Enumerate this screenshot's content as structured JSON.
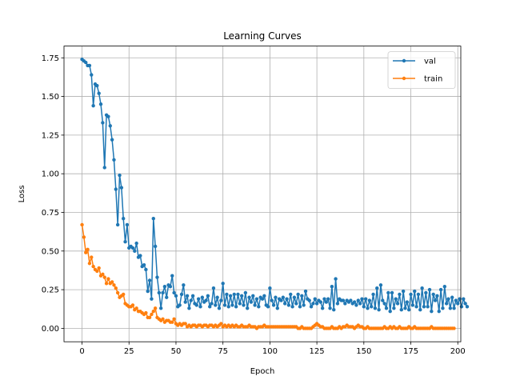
{
  "chart_data": {
    "type": "line",
    "title": "Learning Curves",
    "xlabel": "Epoch",
    "ylabel": "Loss",
    "xlim": [
      -9.6,
      201.6
    ],
    "ylim": [
      -0.087,
      1.826
    ],
    "xticks": [
      0,
      25,
      50,
      75,
      100,
      125,
      150,
      175,
      200
    ],
    "xtick_labels": [
      "0",
      "25",
      "50",
      "75",
      "100",
      "125",
      "150",
      "175",
      "200"
    ],
    "yticks": [
      0.0,
      0.25,
      0.5,
      0.75,
      1.0,
      1.25,
      1.5,
      1.75
    ],
    "ytick_labels": [
      "0.00",
      "0.25",
      "0.50",
      "0.75",
      "1.00",
      "1.25",
      "1.50",
      "1.75"
    ],
    "grid": true,
    "legend": "top-right",
    "series": [
      {
        "name": "val",
        "color": "#1f77b4",
        "values": [
          1.74,
          1.73,
          1.72,
          1.7,
          1.7,
          1.64,
          1.44,
          1.58,
          1.57,
          1.52,
          1.45,
          1.33,
          1.04,
          1.38,
          1.37,
          1.31,
          1.22,
          1.09,
          0.9,
          0.67,
          0.99,
          0.91,
          0.71,
          0.56,
          0.67,
          0.52,
          0.53,
          0.52,
          0.5,
          0.55,
          0.46,
          0.47,
          0.4,
          0.41,
          0.38,
          0.24,
          0.31,
          0.19,
          0.71,
          0.53,
          0.33,
          0.23,
          0.13,
          0.23,
          0.27,
          0.2,
          0.28,
          0.27,
          0.34,
          0.23,
          0.21,
          0.14,
          0.15,
          0.22,
          0.28,
          0.17,
          0.21,
          0.13,
          0.18,
          0.21,
          0.16,
          0.15,
          0.19,
          0.14,
          0.2,
          0.17,
          0.18,
          0.21,
          0.14,
          0.16,
          0.26,
          0.15,
          0.2,
          0.13,
          0.18,
          0.29,
          0.15,
          0.22,
          0.14,
          0.21,
          0.15,
          0.22,
          0.14,
          0.22,
          0.16,
          0.21,
          0.15,
          0.23,
          0.13,
          0.2,
          0.17,
          0.21,
          0.15,
          0.19,
          0.14,
          0.2,
          0.19,
          0.21,
          0.15,
          0.14,
          0.26,
          0.18,
          0.15,
          0.2,
          0.13,
          0.19,
          0.18,
          0.2,
          0.16,
          0.19,
          0.15,
          0.22,
          0.14,
          0.2,
          0.16,
          0.22,
          0.14,
          0.21,
          0.15,
          0.24,
          0.19,
          0.18,
          0.14,
          0.16,
          0.19,
          0.16,
          0.18,
          0.17,
          0.13,
          0.19,
          0.17,
          0.19,
          0.13,
          0.27,
          0.12,
          0.32,
          0.16,
          0.19,
          0.18,
          0.18,
          0.16,
          0.18,
          0.17,
          0.18,
          0.16,
          0.17,
          0.15,
          0.18,
          0.16,
          0.19,
          0.14,
          0.19,
          0.13,
          0.18,
          0.14,
          0.22,
          0.13,
          0.26,
          0.12,
          0.28,
          0.18,
          0.16,
          0.13,
          0.23,
          0.11,
          0.23,
          0.13,
          0.19,
          0.16,
          0.22,
          0.12,
          0.24,
          0.13,
          0.17,
          0.12,
          0.22,
          0.15,
          0.24,
          0.14,
          0.22,
          0.12,
          0.26,
          0.14,
          0.23,
          0.14,
          0.25,
          0.11,
          0.22,
          0.18,
          0.21,
          0.11,
          0.25,
          0.13,
          0.27,
          0.16,
          0.19,
          0.13,
          0.2,
          0.13,
          0.18,
          0.16,
          0.19,
          0.14,
          0.19,
          0.16,
          0.14
        ]
      },
      {
        "name": "train",
        "color": "#ff7f0e",
        "values": [
          0.67,
          0.59,
          0.49,
          0.51,
          0.42,
          0.46,
          0.4,
          0.38,
          0.37,
          0.39,
          0.34,
          0.35,
          0.33,
          0.29,
          0.32,
          0.29,
          0.3,
          0.28,
          0.26,
          0.23,
          0.2,
          0.21,
          0.22,
          0.16,
          0.15,
          0.14,
          0.14,
          0.15,
          0.12,
          0.13,
          0.11,
          0.11,
          0.1,
          0.09,
          0.1,
          0.07,
          0.07,
          0.09,
          0.11,
          0.13,
          0.07,
          0.06,
          0.05,
          0.06,
          0.04,
          0.05,
          0.05,
          0.04,
          0.04,
          0.06,
          0.03,
          0.02,
          0.03,
          0.02,
          0.03,
          0.03,
          0.01,
          0.02,
          0.01,
          0.02,
          0.02,
          0.01,
          0.02,
          0.02,
          0.01,
          0.02,
          0.02,
          0.01,
          0.02,
          0.02,
          0.01,
          0.02,
          0.01,
          0.02,
          0.03,
          0.01,
          0.02,
          0.01,
          0.02,
          0.01,
          0.02,
          0.01,
          0.02,
          0.01,
          0.01,
          0.02,
          0.01,
          0.01,
          0.01,
          0.02,
          0.01,
          0.01,
          0.01,
          0.0,
          0.01,
          0.01,
          0.01,
          0.02,
          0.01,
          0.01,
          0.01,
          0.01,
          0.01,
          0.01,
          0.01,
          0.01,
          0.01,
          0.01,
          0.01,
          0.01,
          0.01,
          0.01,
          0.01,
          0.01,
          0.01,
          0.0,
          0.0,
          0.01,
          0.0,
          0.0,
          0.0,
          0.0,
          0.0,
          0.01,
          0.02,
          0.03,
          0.02,
          0.01,
          0.01,
          0.0,
          0.0,
          0.0,
          0.0,
          0.01,
          0.0,
          0.0,
          0.0,
          0.01,
          0.0,
          0.01,
          0.01,
          0.02,
          0.01,
          0.01,
          0.01,
          0.0,
          0.01,
          0.02,
          0.01,
          0.01,
          0.0,
          0.0,
          0.01,
          0.0,
          0.0,
          0.0,
          0.0,
          0.0,
          0.0,
          0.0,
          0.0,
          0.01,
          0.0,
          0.0,
          0.01,
          0.0,
          0.01,
          0.0,
          0.0,
          0.01,
          0.0,
          0.0,
          0.0,
          0.0,
          0.01,
          0.0,
          0.0,
          0.01,
          0.0,
          0.0,
          0.0,
          0.0,
          0.0,
          0.0,
          0.0,
          0.0,
          0.01,
          0.0,
          0.0,
          0.0,
          0.0,
          0.0,
          0.0,
          0.0,
          0.0,
          0.0,
          0.0,
          0.0,
          0.0
        ]
      }
    ]
  }
}
